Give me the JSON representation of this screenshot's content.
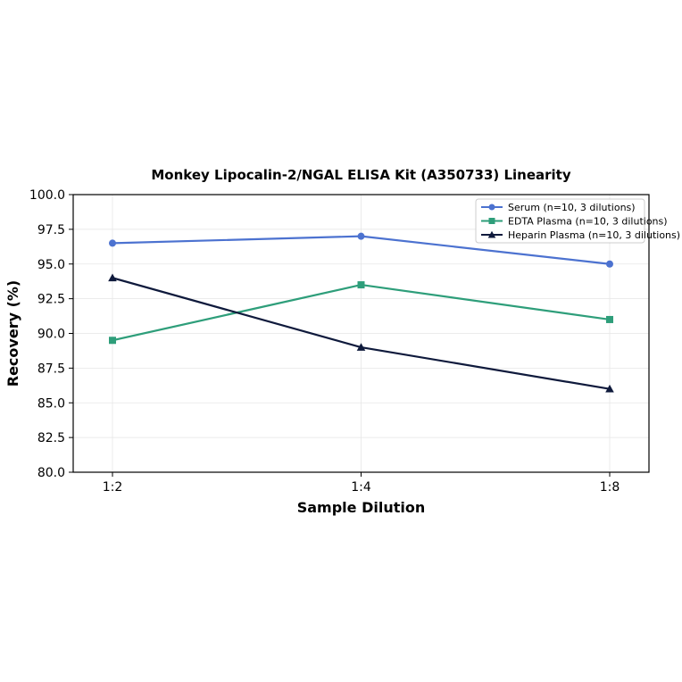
{
  "chart_data": {
    "type": "line",
    "title": "Monkey Lipocalin-2/NGAL ELISA Kit (A350733) Linearity",
    "xlabel": "Sample Dilution",
    "ylabel": "Recovery (%)",
    "categories": [
      "1:2",
      "1:4",
      "1:8"
    ],
    "ylim": [
      80.0,
      100.0
    ],
    "yticks": [
      "80.0",
      "82.5",
      "85.0",
      "87.5",
      "90.0",
      "92.5",
      "95.0",
      "97.5",
      "100.0"
    ],
    "grid": true,
    "legend_position": "top-right",
    "series": [
      {
        "name": "Serum (n=10, 3 dilutions)",
        "values": [
          96.5,
          97.0,
          95.0
        ],
        "color": "#4C72D0",
        "marker": "circle"
      },
      {
        "name": "EDTA Plasma (n=10, 3 dilutions)",
        "values": [
          89.5,
          93.5,
          91.0
        ],
        "color": "#2E9E7A",
        "marker": "square"
      },
      {
        "name": "Heparin Plasma (n=10, 3 dilutions)",
        "values": [
          94.0,
          89.0,
          86.0
        ],
        "color": "#0F1A3C",
        "marker": "triangle"
      }
    ]
  }
}
